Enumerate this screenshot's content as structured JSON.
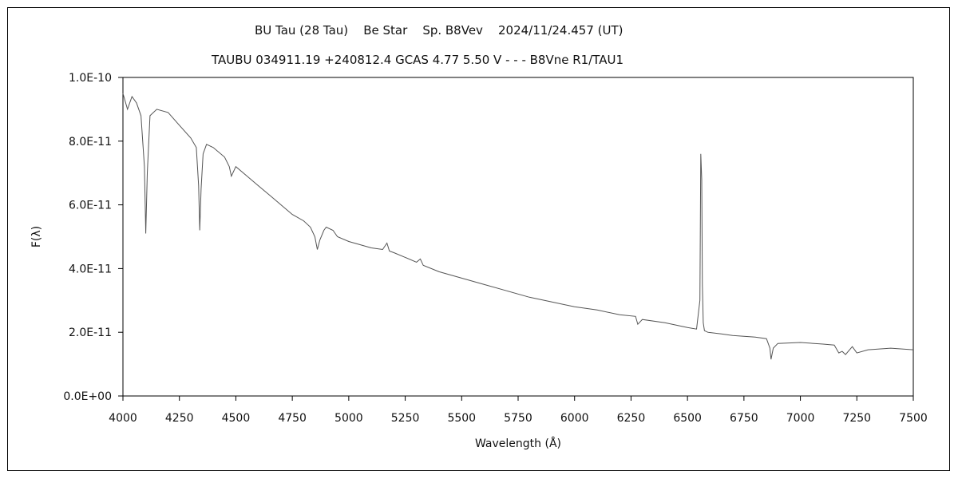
{
  "chart_data": {
    "type": "line",
    "title": "BU Tau (28 Tau)    Be Star    Sp. B8Vev    2024/11/24.457 (UT)",
    "subtitle": "TAUBU 034911.19 +240812.4 GCAS 4.77 5.50 V - - - B8Vne R1/TAU1",
    "xlabel": "Wavelength (Å)",
    "ylabel": "F(λ)",
    "xlim": [
      4000,
      7500
    ],
    "ylim": [
      0,
      1e-10
    ],
    "x_ticks": [
      "4000",
      "4250",
      "4500",
      "4750",
      "5000",
      "5250",
      "5500",
      "5750",
      "6000",
      "6250",
      "6500",
      "6750",
      "7000",
      "7250",
      "7500"
    ],
    "y_ticks": [
      "0.0E+00",
      "2.0E-11",
      "4.0E-11",
      "6.0E-11",
      "8.0E-11",
      "1.0E-10"
    ],
    "grid": false,
    "series": [
      {
        "color": "#555555",
        "x": [
          4000,
          4020,
          4040,
          4060,
          4080,
          4095,
          4101,
          4108,
          4120,
          4150,
          4200,
          4250,
          4300,
          4325,
          4335,
          4340,
          4346,
          4355,
          4370,
          4400,
          4450,
          4471,
          4480,
          4500,
          4550,
          4600,
          4650,
          4700,
          4750,
          4800,
          4830,
          4850,
          4861,
          4872,
          4890,
          4900,
          4930,
          4950,
          5000,
          5050,
          5100,
          5150,
          5169,
          5180,
          5200,
          5250,
          5300,
          5317,
          5330,
          5400,
          5500,
          5600,
          5700,
          5800,
          5900,
          6000,
          6100,
          6200,
          6270,
          6280,
          6300,
          6400,
          6500,
          6540,
          6555,
          6559,
          6563,
          6566,
          6570,
          6575,
          6590,
          6650,
          6700,
          6800,
          6850,
          6865,
          6870,
          6880,
          6900,
          7000,
          7100,
          7150,
          7170,
          7185,
          7200,
          7230,
          7250,
          7300,
          7400,
          7500
        ],
        "y": [
          9.5e-11,
          9e-11,
          9.4e-11,
          9.2e-11,
          8.8e-11,
          7.2e-11,
          5.1e-11,
          7e-11,
          8.8e-11,
          9e-11,
          8.9e-11,
          8.5e-11,
          8.1e-11,
          7.8e-11,
          6.6e-11,
          5.2e-11,
          6.5e-11,
          7.6e-11,
          7.9e-11,
          7.8e-11,
          7.5e-11,
          7.2e-11,
          6.9e-11,
          7.2e-11,
          6.9e-11,
          6.6e-11,
          6.3e-11,
          6e-11,
          5.7e-11,
          5.5e-11,
          5.3e-11,
          5e-11,
          4.6e-11,
          4.9e-11,
          5.2e-11,
          5.3e-11,
          5.2e-11,
          5e-11,
          4.85e-11,
          4.75e-11,
          4.65e-11,
          4.6e-11,
          4.8e-11,
          4.55e-11,
          4.5e-11,
          4.35e-11,
          4.2e-11,
          4.3e-11,
          4.1e-11,
          3.9e-11,
          3.7e-11,
          3.5e-11,
          3.3e-11,
          3.1e-11,
          2.95e-11,
          2.8e-11,
          2.7e-11,
          2.55e-11,
          2.5e-11,
          2.25e-11,
          2.4e-11,
          2.3e-11,
          2.15e-11,
          2.1e-11,
          3e-11,
          7.6e-11,
          6.8e-11,
          3.5e-11,
          2.3e-11,
          2.05e-11,
          2e-11,
          1.95e-11,
          1.9e-11,
          1.85e-11,
          1.8e-11,
          1.5e-11,
          1.15e-11,
          1.5e-11,
          1.65e-11,
          1.68e-11,
          1.63e-11,
          1.6e-11,
          1.35e-11,
          1.4e-11,
          1.3e-11,
          1.55e-11,
          1.35e-11,
          1.45e-11,
          1.5e-11,
          1.45e-11
        ]
      }
    ]
  }
}
